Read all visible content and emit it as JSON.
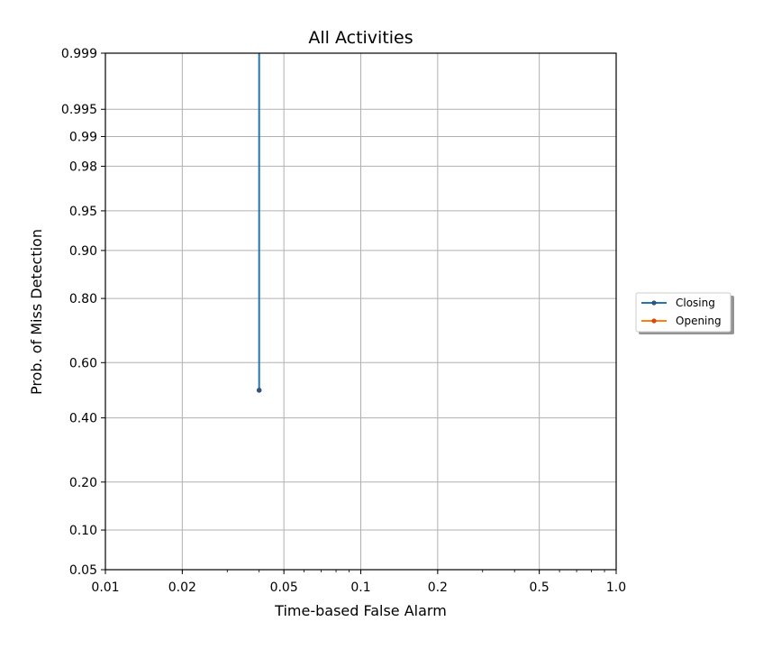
{
  "chart_data": {
    "type": "line",
    "title": "All Activities",
    "xlabel": "Time-based False Alarm",
    "ylabel": "Prob. of Miss Detection",
    "x_scale": "log",
    "y_scale": "probit",
    "xlim": [
      0.01,
      1.0
    ],
    "ylim": [
      0.05,
      0.999
    ],
    "grid": true,
    "legend_position": "right",
    "x_ticks": [
      {
        "value": 0.01,
        "label": "0.01"
      },
      {
        "value": 0.02,
        "label": "0.02"
      },
      {
        "value": 0.05,
        "label": "0.05"
      },
      {
        "value": 0.1,
        "label": "0.1"
      },
      {
        "value": 0.2,
        "label": "0.2"
      },
      {
        "value": 0.5,
        "label": "0.5"
      },
      {
        "value": 1.0,
        "label": "1.0"
      }
    ],
    "y_ticks": [
      {
        "value": 0.05,
        "label": "0.05"
      },
      {
        "value": 0.1,
        "label": "0.10"
      },
      {
        "value": 0.2,
        "label": "0.20"
      },
      {
        "value": 0.4,
        "label": "0.40"
      },
      {
        "value": 0.6,
        "label": "0.60"
      },
      {
        "value": 0.8,
        "label": "0.80"
      },
      {
        "value": 0.9,
        "label": "0.90"
      },
      {
        "value": 0.95,
        "label": "0.95"
      },
      {
        "value": 0.98,
        "label": "0.98"
      },
      {
        "value": 0.99,
        "label": "0.99"
      },
      {
        "value": 0.995,
        "label": "0.995"
      },
      {
        "value": 0.999,
        "label": "0.999"
      }
    ],
    "series": [
      {
        "name": "Closing",
        "color": "#1f77b4",
        "points": [
          [
            0.04,
            0.999
          ],
          [
            0.04,
            0.5
          ]
        ]
      },
      {
        "name": "Opening",
        "color": "#ff7f0e",
        "points": []
      }
    ]
  }
}
